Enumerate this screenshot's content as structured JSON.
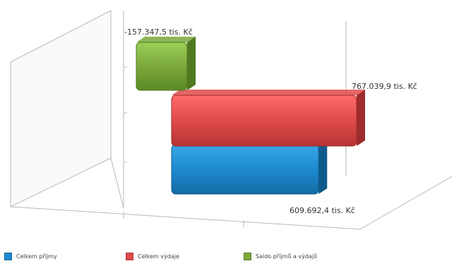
{
  "chart_data": {
    "type": "bar",
    "orientation": "horizontal",
    "three_d": true,
    "unit": "tis. Kč",
    "series": [
      {
        "name": "Celkem příjmy",
        "value": 609692.4,
        "label": "609.692,4 tis. Kč",
        "color": "#1d8ad0"
      },
      {
        "name": "Celkem výdaje",
        "value": 767039.9,
        "label": "767.039,9 tis. Kč",
        "color": "#e04a4a"
      },
      {
        "name": "Saldo příjmů a výdajů",
        "value": -157347.5,
        "label": "-157.347,5 tis. Kč",
        "color": "#7aa83a"
      }
    ],
    "xlim": [
      -200000,
      800000
    ],
    "grid": true,
    "legend_position": "bottom-left"
  }
}
